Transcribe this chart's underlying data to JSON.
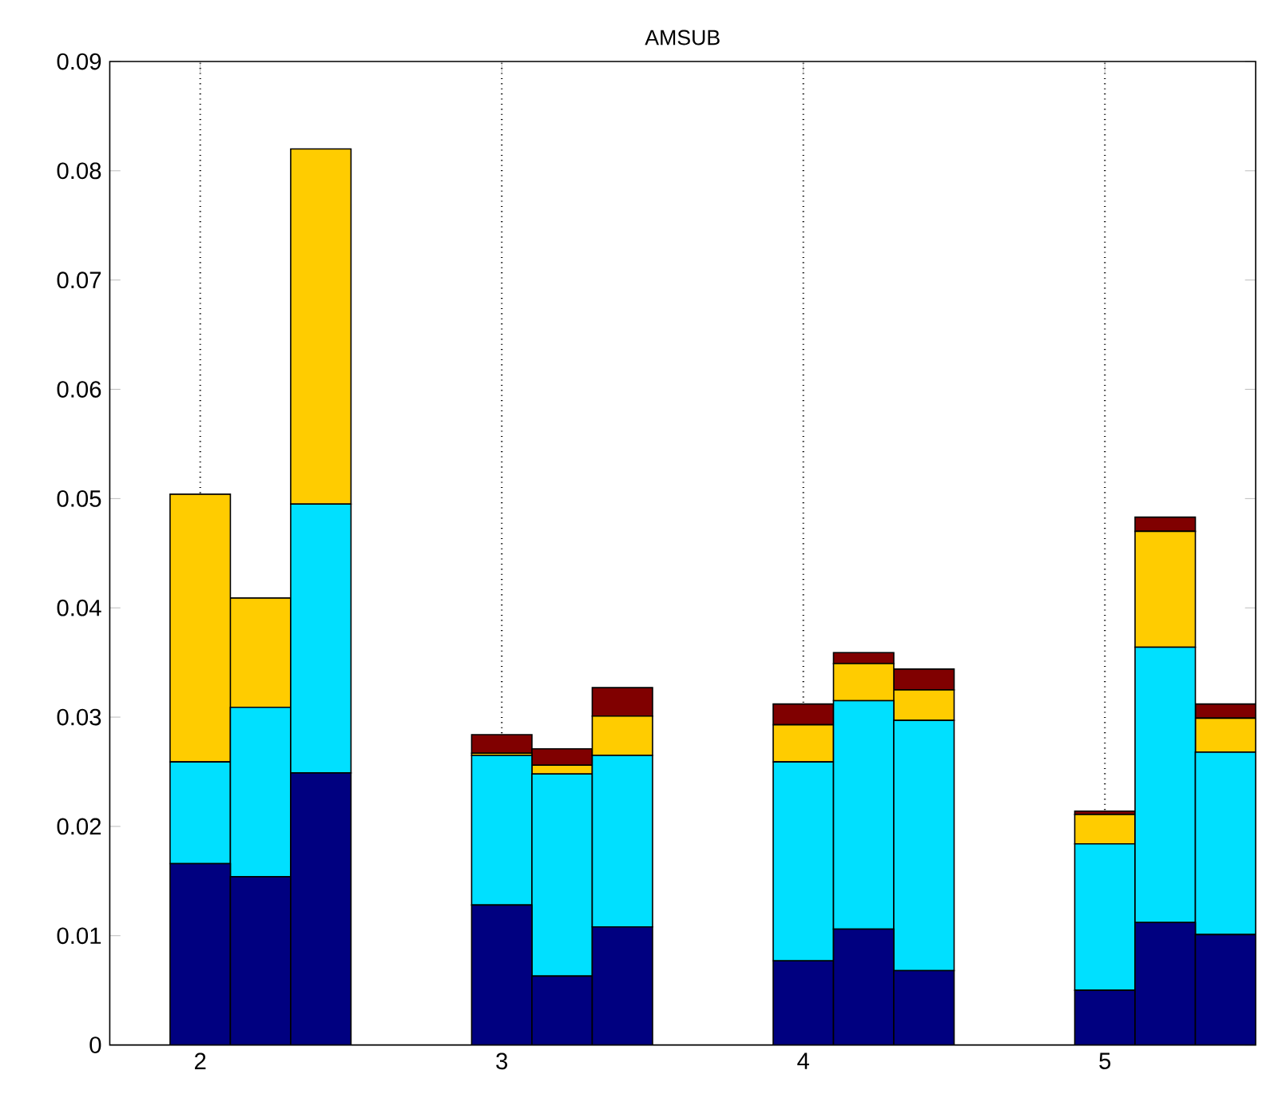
{
  "chart_data": {
    "type": "bar",
    "title": "AMSUB",
    "stacked": true,
    "x": [
      2,
      2.2,
      2.4,
      3,
      3.2,
      3.4,
      4,
      4.2,
      4.4,
      5,
      5.2,
      5.4
    ],
    "series": [
      {
        "color": "#000080",
        "values": [
          0.0166,
          0.0154,
          0.0249,
          0.0128,
          0.0063,
          0.0108,
          0.0077,
          0.0106,
          0.0068,
          0.005,
          0.0112,
          0.0101
        ]
      },
      {
        "color": "#00e0ff",
        "values": [
          0.0093,
          0.0155,
          0.0246,
          0.0137,
          0.0185,
          0.0157,
          0.0182,
          0.0209,
          0.0229,
          0.0134,
          0.0252,
          0.0167
        ]
      },
      {
        "color": "#ffcc00",
        "values": [
          0.0245,
          0.01,
          0.0325,
          0.0002,
          0.0008,
          0.0036,
          0.0034,
          0.0034,
          0.0028,
          0.0027,
          0.0106,
          0.0031
        ]
      },
      {
        "color": "#800000",
        "values": [
          0,
          0,
          0,
          0.0017,
          0.0015,
          0.0026,
          0.0019,
          0.001,
          0.0019,
          0.0003,
          0.0013,
          0.0013
        ]
      }
    ],
    "xlim": [
      1.7,
      5.5
    ],
    "xticks": [
      2,
      3,
      4,
      5
    ],
    "ylim": [
      0,
      0.09
    ],
    "yticks": [
      0,
      0.01,
      0.02,
      0.03,
      0.04,
      0.05,
      0.06,
      0.07,
      0.08,
      0.09
    ],
    "grid": "x"
  }
}
